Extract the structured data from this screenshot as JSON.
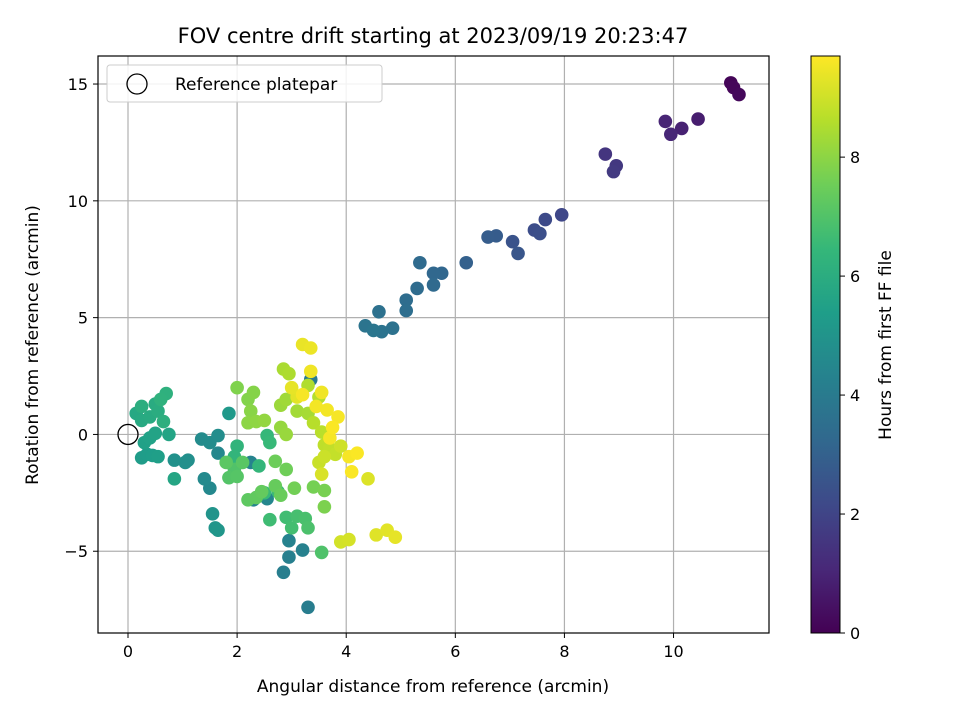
{
  "chart_data": {
    "type": "scatter",
    "title": "FOV centre drift starting at 2023/09/19 20:23:47",
    "xlabel": "Angular distance from reference (arcmin)",
    "ylabel": "Rotation from reference (arcmin)",
    "xlim": [
      -0.55,
      11.75
    ],
    "ylim": [
      -8.5,
      16.2
    ],
    "x_ticks": [
      0,
      2,
      4,
      6,
      8,
      10
    ],
    "y_ticks": [
      -5,
      0,
      5,
      10,
      15
    ],
    "x_tick_labels": [
      "0",
      "2",
      "4",
      "6",
      "8",
      "10"
    ],
    "y_tick_labels": [
      "−5",
      "0",
      "5",
      "10",
      "15"
    ],
    "grid": true,
    "legend": {
      "position": "top-left",
      "entries": [
        "Reference platepar"
      ]
    },
    "reference_point": {
      "x": 0,
      "y": 0
    },
    "colorbar": {
      "label": "Hours from first FF file",
      "colormap": "viridis",
      "range": [
        0,
        9.7
      ],
      "ticks": [
        0,
        2,
        4,
        6,
        8
      ],
      "tick_labels": [
        "0",
        "2",
        "4",
        "6",
        "8"
      ]
    },
    "points": [
      {
        "x": 11.05,
        "y": 15.05,
        "c": 0.1
      },
      {
        "x": 11.1,
        "y": 14.85,
        "c": 0.15
      },
      {
        "x": 11.2,
        "y": 14.55,
        "c": 0.2
      },
      {
        "x": 10.45,
        "y": 13.5,
        "c": 0.8
      },
      {
        "x": 10.15,
        "y": 13.1,
        "c": 0.9
      },
      {
        "x": 9.85,
        "y": 13.4,
        "c": 1.0
      },
      {
        "x": 9.95,
        "y": 12.85,
        "c": 1.05
      },
      {
        "x": 8.75,
        "y": 12.0,
        "c": 1.5
      },
      {
        "x": 8.95,
        "y": 11.5,
        "c": 1.6
      },
      {
        "x": 8.9,
        "y": 11.25,
        "c": 1.65
      },
      {
        "x": 7.95,
        "y": 9.4,
        "c": 2.1
      },
      {
        "x": 7.65,
        "y": 9.2,
        "c": 2.2
      },
      {
        "x": 7.45,
        "y": 8.75,
        "c": 2.3
      },
      {
        "x": 7.55,
        "y": 8.6,
        "c": 2.35
      },
      {
        "x": 7.05,
        "y": 8.25,
        "c": 2.5
      },
      {
        "x": 7.15,
        "y": 7.75,
        "c": 2.6
      },
      {
        "x": 6.75,
        "y": 8.5,
        "c": 2.8
      },
      {
        "x": 6.6,
        "y": 8.45,
        "c": 2.85
      },
      {
        "x": 6.2,
        "y": 7.35,
        "c": 3.0
      },
      {
        "x": 5.75,
        "y": 6.9,
        "c": 3.2
      },
      {
        "x": 5.6,
        "y": 6.9,
        "c": 3.25
      },
      {
        "x": 5.6,
        "y": 6.4,
        "c": 3.3
      },
      {
        "x": 5.35,
        "y": 7.35,
        "c": 3.35
      },
      {
        "x": 5.3,
        "y": 6.25,
        "c": 3.4
      },
      {
        "x": 5.1,
        "y": 5.75,
        "c": 3.45
      },
      {
        "x": 5.1,
        "y": 5.3,
        "c": 3.5
      },
      {
        "x": 4.6,
        "y": 5.25,
        "c": 3.6
      },
      {
        "x": 4.85,
        "y": 4.55,
        "c": 3.65
      },
      {
        "x": 4.65,
        "y": 4.4,
        "c": 3.7
      },
      {
        "x": 4.35,
        "y": 4.65,
        "c": 3.75
      },
      {
        "x": 4.5,
        "y": 4.45,
        "c": 3.8
      },
      {
        "x": 3.35,
        "y": 2.35,
        "c": 4.0
      },
      {
        "x": 3.3,
        "y": -7.4,
        "c": 4.1
      },
      {
        "x": 2.85,
        "y": -5.9,
        "c": 4.15
      },
      {
        "x": 2.95,
        "y": -5.25,
        "c": 4.2
      },
      {
        "x": 3.2,
        "y": -4.95,
        "c": 4.25
      },
      {
        "x": 2.95,
        "y": -4.55,
        "c": 4.3
      },
      {
        "x": 2.25,
        "y": -1.2,
        "c": 4.35
      },
      {
        "x": 2.3,
        "y": -2.8,
        "c": 4.4
      },
      {
        "x": 2.55,
        "y": -2.75,
        "c": 4.45
      },
      {
        "x": 1.65,
        "y": -0.8,
        "c": 4.5
      },
      {
        "x": 1.5,
        "y": -2.3,
        "c": 4.55
      },
      {
        "x": 1.4,
        "y": -1.9,
        "c": 4.6
      },
      {
        "x": 1.35,
        "y": -0.2,
        "c": 4.65
      },
      {
        "x": 1.5,
        "y": -0.35,
        "c": 4.7
      },
      {
        "x": 1.65,
        "y": -0.05,
        "c": 4.75
      },
      {
        "x": 1.1,
        "y": -1.1,
        "c": 4.8
      },
      {
        "x": 1.05,
        "y": -1.2,
        "c": 4.85
      },
      {
        "x": 0.85,
        "y": -1.1,
        "c": 4.9
      },
      {
        "x": 1.55,
        "y": -3.4,
        "c": 5.0
      },
      {
        "x": 1.6,
        "y": -4.0,
        "c": 5.05
      },
      {
        "x": 1.65,
        "y": -4.1,
        "c": 5.1
      },
      {
        "x": 1.85,
        "y": 0.9,
        "c": 5.2
      },
      {
        "x": 0.25,
        "y": -1.0,
        "c": 5.3
      },
      {
        "x": 0.35,
        "y": -0.85,
        "c": 5.35
      },
      {
        "x": 0.45,
        "y": -0.9,
        "c": 5.4
      },
      {
        "x": 0.55,
        "y": -0.95,
        "c": 5.45
      },
      {
        "x": 0.3,
        "y": -0.35,
        "c": 5.5
      },
      {
        "x": 0.4,
        "y": -0.15,
        "c": 5.55
      },
      {
        "x": 0.5,
        "y": 0.05,
        "c": 5.6
      },
      {
        "x": 0.75,
        "y": 0.0,
        "c": 5.65
      },
      {
        "x": 0.85,
        "y": -1.9,
        "c": 5.7
      },
      {
        "x": 0.15,
        "y": 0.9,
        "c": 5.8
      },
      {
        "x": 0.25,
        "y": 0.6,
        "c": 5.85
      },
      {
        "x": 0.4,
        "y": 0.75,
        "c": 5.9
      },
      {
        "x": 0.5,
        "y": 1.3,
        "c": 5.95
      },
      {
        "x": 0.55,
        "y": 1.0,
        "c": 6.0
      },
      {
        "x": 0.25,
        "y": 1.2,
        "c": 6.05
      },
      {
        "x": 0.65,
        "y": 0.55,
        "c": 6.1
      },
      {
        "x": 0.7,
        "y": 1.75,
        "c": 6.15
      },
      {
        "x": 0.6,
        "y": 1.5,
        "c": 6.2
      },
      {
        "x": 2.0,
        "y": -0.5,
        "c": 6.3
      },
      {
        "x": 1.95,
        "y": -0.95,
        "c": 6.35
      },
      {
        "x": 2.4,
        "y": -1.35,
        "c": 6.4
      },
      {
        "x": 2.55,
        "y": -0.05,
        "c": 6.45
      },
      {
        "x": 2.6,
        "y": -0.35,
        "c": 6.5
      },
      {
        "x": 2.5,
        "y": -2.5,
        "c": 6.55
      },
      {
        "x": 2.75,
        "y": -2.45,
        "c": 6.6
      },
      {
        "x": 2.6,
        "y": -3.65,
        "c": 6.65
      },
      {
        "x": 2.9,
        "y": -3.55,
        "c": 6.7
      },
      {
        "x": 3.0,
        "y": -4.0,
        "c": 6.75
      },
      {
        "x": 3.1,
        "y": -3.5,
        "c": 6.8
      },
      {
        "x": 3.25,
        "y": -3.6,
        "c": 6.85
      },
      {
        "x": 3.3,
        "y": -4.0,
        "c": 6.9
      },
      {
        "x": 3.55,
        "y": -5.05,
        "c": 6.95
      },
      {
        "x": 1.95,
        "y": -1.5,
        "c": 7.0
      },
      {
        "x": 1.85,
        "y": -1.85,
        "c": 7.05
      },
      {
        "x": 2.0,
        "y": -1.8,
        "c": 7.1
      },
      {
        "x": 2.1,
        "y": -1.2,
        "c": 7.15
      },
      {
        "x": 1.8,
        "y": -1.2,
        "c": 7.2
      },
      {
        "x": 2.2,
        "y": -2.8,
        "c": 7.25
      },
      {
        "x": 2.35,
        "y": -2.7,
        "c": 7.3
      },
      {
        "x": 2.45,
        "y": -2.45,
        "c": 7.35
      },
      {
        "x": 2.7,
        "y": -2.2,
        "c": 7.4
      },
      {
        "x": 2.8,
        "y": -2.6,
        "c": 7.45
      },
      {
        "x": 2.7,
        "y": -1.15,
        "c": 7.5
      },
      {
        "x": 2.9,
        "y": -1.5,
        "c": 7.55
      },
      {
        "x": 3.05,
        "y": -2.3,
        "c": 7.6
      },
      {
        "x": 3.4,
        "y": -2.25,
        "c": 7.65
      },
      {
        "x": 3.6,
        "y": -2.4,
        "c": 7.7
      },
      {
        "x": 3.6,
        "y": -3.1,
        "c": 7.75
      },
      {
        "x": 2.0,
        "y": 2.0,
        "c": 7.8
      },
      {
        "x": 2.2,
        "y": 1.5,
        "c": 7.85
      },
      {
        "x": 2.3,
        "y": 1.8,
        "c": 7.9
      },
      {
        "x": 2.25,
        "y": 1.0,
        "c": 7.95
      },
      {
        "x": 2.2,
        "y": 0.5,
        "c": 8.0
      },
      {
        "x": 2.35,
        "y": 0.55,
        "c": 8.05
      },
      {
        "x": 2.5,
        "y": 0.6,
        "c": 8.1
      },
      {
        "x": 2.8,
        "y": 0.3,
        "c": 8.15
      },
      {
        "x": 2.9,
        "y": 0.0,
        "c": 8.2
      },
      {
        "x": 2.8,
        "y": 1.25,
        "c": 8.25
      },
      {
        "x": 2.9,
        "y": 1.5,
        "c": 8.3
      },
      {
        "x": 3.1,
        "y": 1.0,
        "c": 8.35
      },
      {
        "x": 3.3,
        "y": 0.9,
        "c": 8.4
      },
      {
        "x": 2.85,
        "y": 2.8,
        "c": 8.45
      },
      {
        "x": 2.95,
        "y": 2.6,
        "c": 8.5
      },
      {
        "x": 3.3,
        "y": 2.1,
        "c": 8.55
      },
      {
        "x": 3.5,
        "y": 1.6,
        "c": 8.6
      },
      {
        "x": 3.4,
        "y": 0.5,
        "c": 8.65
      },
      {
        "x": 3.55,
        "y": 0.1,
        "c": 8.7
      },
      {
        "x": 3.6,
        "y": -0.45,
        "c": 8.75
      },
      {
        "x": 3.7,
        "y": -0.6,
        "c": 8.8
      },
      {
        "x": 3.8,
        "y": -0.85,
        "c": 8.85
      },
      {
        "x": 3.5,
        "y": -1.2,
        "c": 8.9
      },
      {
        "x": 3.6,
        "y": -0.95,
        "c": 8.95
      },
      {
        "x": 3.9,
        "y": -0.5,
        "c": 9.0
      },
      {
        "x": 3.9,
        "y": -4.6,
        "c": 9.05
      },
      {
        "x": 4.05,
        "y": -4.5,
        "c": 9.1
      },
      {
        "x": 3.55,
        "y": -1.7,
        "c": 9.15
      },
      {
        "x": 4.4,
        "y": -1.9,
        "c": 9.2
      },
      {
        "x": 4.55,
        "y": -4.3,
        "c": 9.25
      },
      {
        "x": 4.75,
        "y": -4.1,
        "c": 9.3
      },
      {
        "x": 4.9,
        "y": -4.4,
        "c": 9.35
      },
      {
        "x": 3.1,
        "y": 1.6,
        "c": 9.3
      },
      {
        "x": 3.0,
        "y": 2.0,
        "c": 9.35
      },
      {
        "x": 3.2,
        "y": 3.85,
        "c": 9.4
      },
      {
        "x": 3.35,
        "y": 3.7,
        "c": 9.45
      },
      {
        "x": 3.35,
        "y": 2.7,
        "c": 9.5
      },
      {
        "x": 3.45,
        "y": 1.2,
        "c": 9.55
      },
      {
        "x": 3.55,
        "y": 1.8,
        "c": 9.5
      },
      {
        "x": 3.65,
        "y": 1.05,
        "c": 9.55
      },
      {
        "x": 3.85,
        "y": 0.75,
        "c": 9.6
      },
      {
        "x": 3.7,
        "y": -0.15,
        "c": 9.6
      },
      {
        "x": 4.05,
        "y": -0.95,
        "c": 9.6
      },
      {
        "x": 4.2,
        "y": -0.8,
        "c": 9.65
      },
      {
        "x": 4.1,
        "y": -1.6,
        "c": 9.65
      },
      {
        "x": 3.75,
        "y": 0.3,
        "c": 9.65
      },
      {
        "x": 3.2,
        "y": 1.7,
        "c": 9.6
      }
    ]
  }
}
